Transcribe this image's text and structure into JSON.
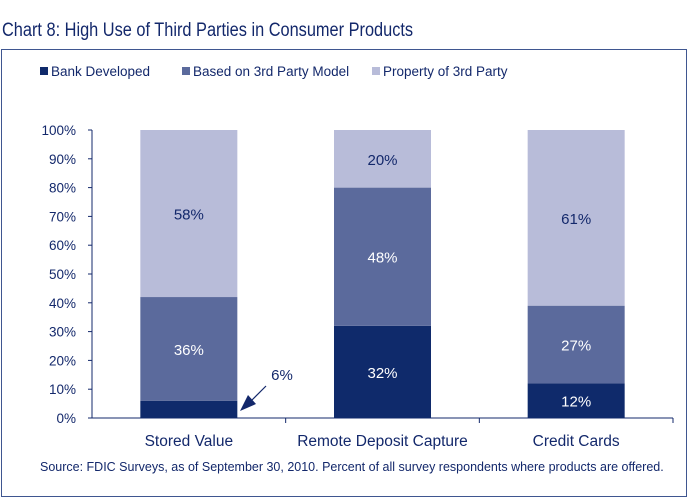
{
  "chart_data": {
    "type": "bar",
    "stacked": true,
    "title": "Chart 8: High Use of Third Parties in Consumer Products",
    "categories": [
      "Stored Value",
      "Remote Deposit Capture",
      "Credit Cards"
    ],
    "series": [
      {
        "name": "Bank Developed",
        "values": [
          6,
          32,
          12
        ],
        "labels": [
          "6%",
          "32%",
          "12%"
        ],
        "color": "#0f2a6b",
        "label_color": "#ffffff"
      },
      {
        "name": "Based on 3rd Party Model",
        "values": [
          36,
          48,
          27
        ],
        "labels": [
          "36%",
          "48%",
          "27%"
        ],
        "color": "#5b6a9c",
        "label_color": "#ffffff"
      },
      {
        "name": "Property of 3rd Party",
        "values": [
          58,
          20,
          61
        ],
        "labels": [
          "58%",
          "20%",
          "61%"
        ],
        "color": "#b8bcd9",
        "label_color": "#13286b"
      }
    ],
    "ylim": [
      0,
      100
    ],
    "yticks": [
      "0%",
      "10%",
      "20%",
      "30%",
      "40%",
      "50%",
      "60%",
      "70%",
      "80%",
      "90%",
      "100%"
    ],
    "legend": "top",
    "annotation": "6%",
    "source": "Source: FDIC Surveys, as of September 30, 2010.  Percent of all survey respondents where products are offered."
  }
}
